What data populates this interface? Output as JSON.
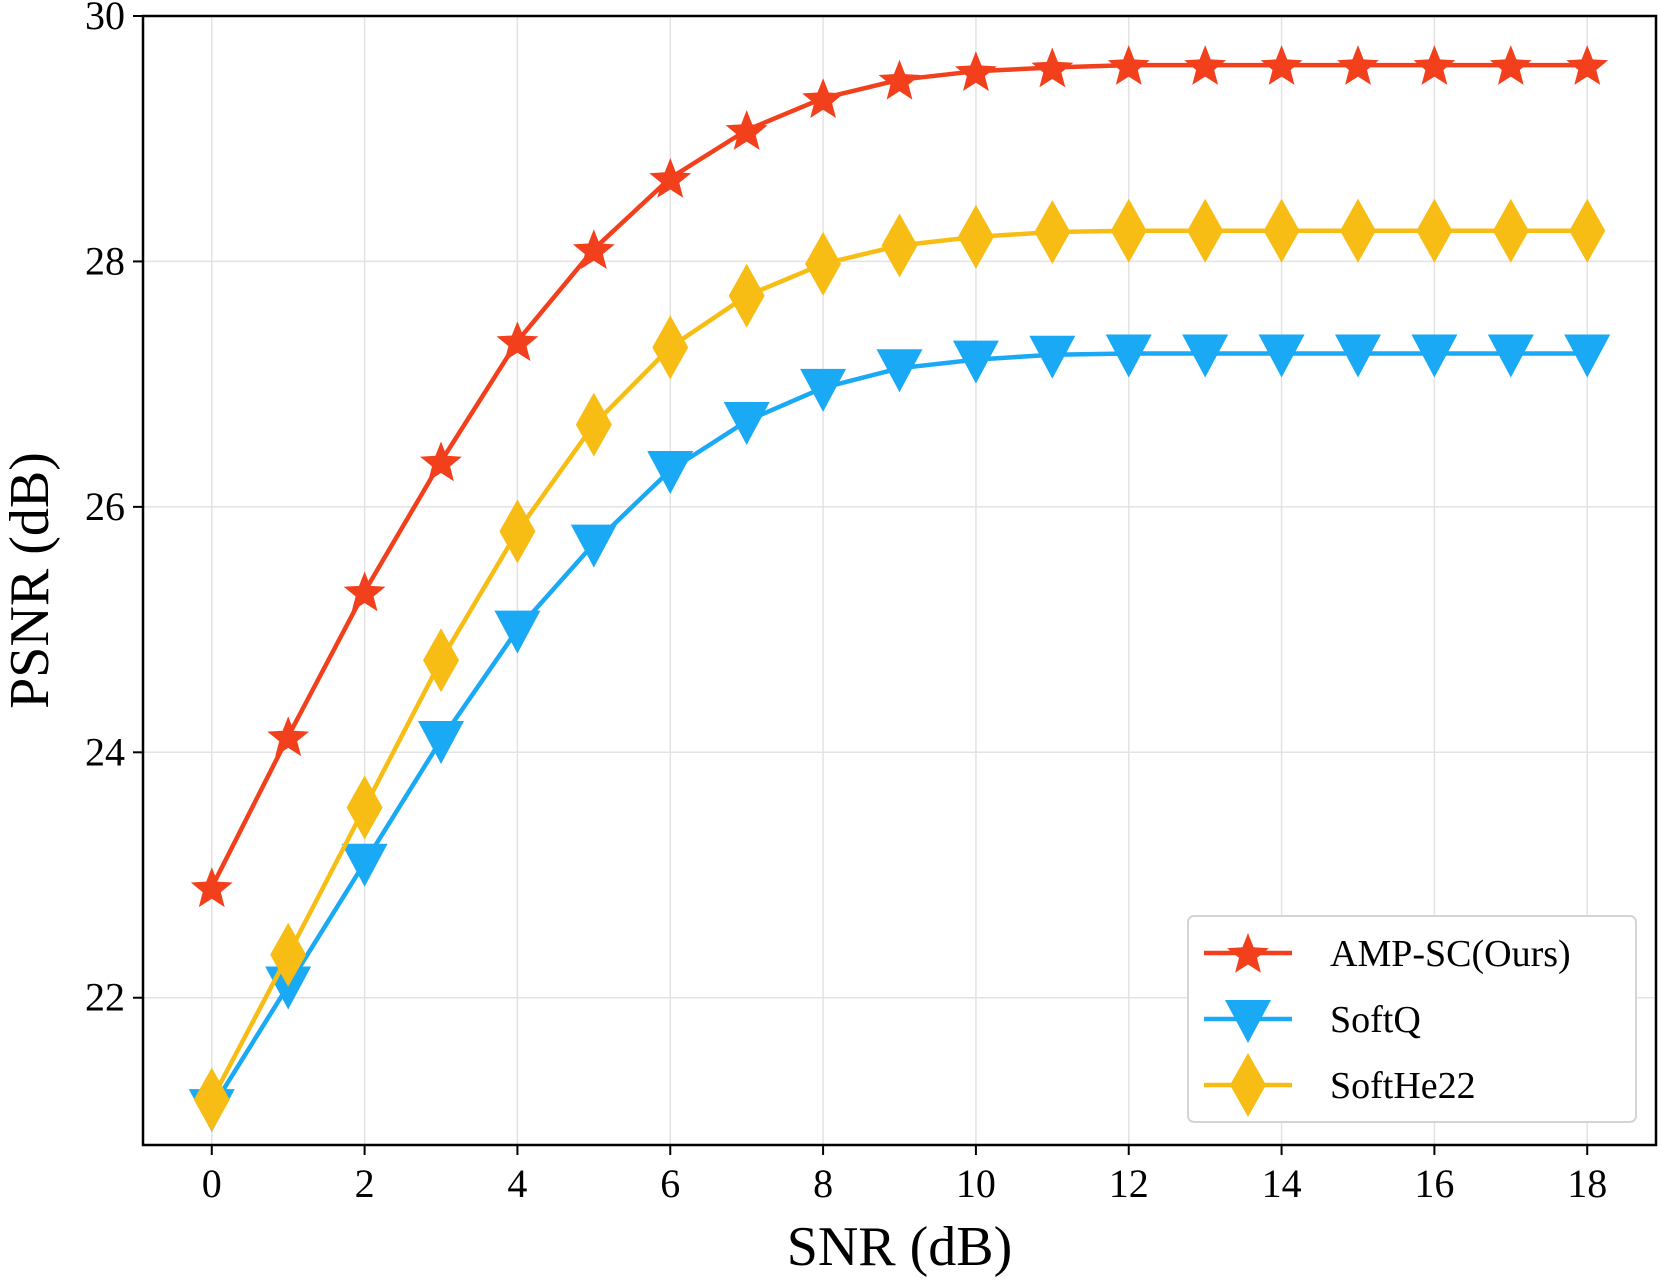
{
  "chart_data": {
    "type": "line",
    "title": "",
    "xlabel": "SNR (dB)",
    "ylabel": "PSNR (dB)",
    "xlim": [
      -0.9,
      18.9
    ],
    "ylim": [
      20.8,
      30.0
    ],
    "xticks": [
      0,
      2,
      4,
      6,
      8,
      10,
      12,
      14,
      16,
      18
    ],
    "yticks": [
      22,
      24,
      26,
      28,
      30
    ],
    "grid": true,
    "legend_position": "lower-right",
    "x": [
      0,
      1,
      2,
      3,
      4,
      5,
      6,
      7,
      8,
      9,
      10,
      11,
      12,
      13,
      14,
      15,
      16,
      17,
      18
    ],
    "series": [
      {
        "name": "AMP-SC(Ours)",
        "color": "#f23f1c",
        "marker": "star",
        "values": [
          22.9,
          24.13,
          25.31,
          26.37,
          27.35,
          28.1,
          28.68,
          29.07,
          29.33,
          29.48,
          29.55,
          29.58,
          29.6,
          29.6,
          29.6,
          29.6,
          29.6,
          29.6,
          29.6
        ]
      },
      {
        "name": "SoftQ",
        "color": "#1aa9f4",
        "marker": "triangle-down",
        "values": [
          21.1,
          22.1,
          23.1,
          24.1,
          25.0,
          25.7,
          26.3,
          26.7,
          26.97,
          27.13,
          27.2,
          27.24,
          27.25,
          27.25,
          27.25,
          27.25,
          27.25,
          27.25,
          27.25
        ]
      },
      {
        "name": "SoftHe22",
        "color": "#f8bd14",
        "marker": "diamond",
        "values": [
          21.17,
          22.35,
          23.55,
          24.75,
          25.8,
          26.67,
          27.3,
          27.72,
          27.98,
          28.13,
          28.2,
          28.24,
          28.25,
          28.25,
          28.25,
          28.25,
          28.25,
          28.25,
          28.25
        ]
      }
    ]
  }
}
